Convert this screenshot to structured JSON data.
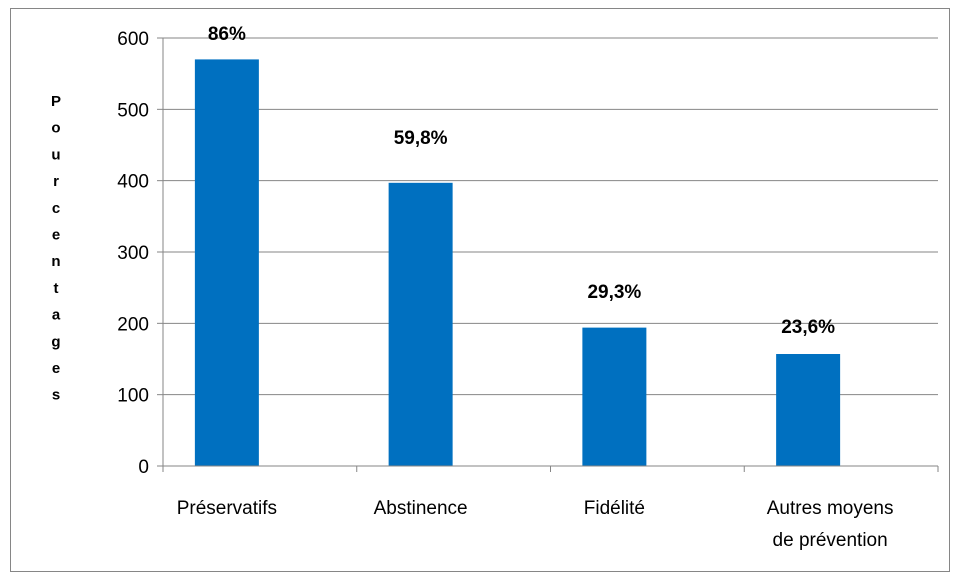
{
  "chart_data": {
    "type": "bar",
    "categories": [
      [
        "Préservatifs"
      ],
      [
        "Abstinence"
      ],
      [
        "Fidélité"
      ],
      [
        "Autres moyens",
        "de prévention"
      ]
    ],
    "values": [
      570,
      397,
      194,
      157
    ],
    "data_labels": [
      "86%",
      "59,8%",
      "29,3%",
      "23,6%"
    ],
    "ylabel": "Pourcentages",
    "yticks": [
      "0",
      "100",
      "200",
      "300",
      "400",
      "500",
      "600"
    ],
    "ylim": [
      0,
      600
    ],
    "grid": true,
    "bar_color": "#0070C0"
  }
}
